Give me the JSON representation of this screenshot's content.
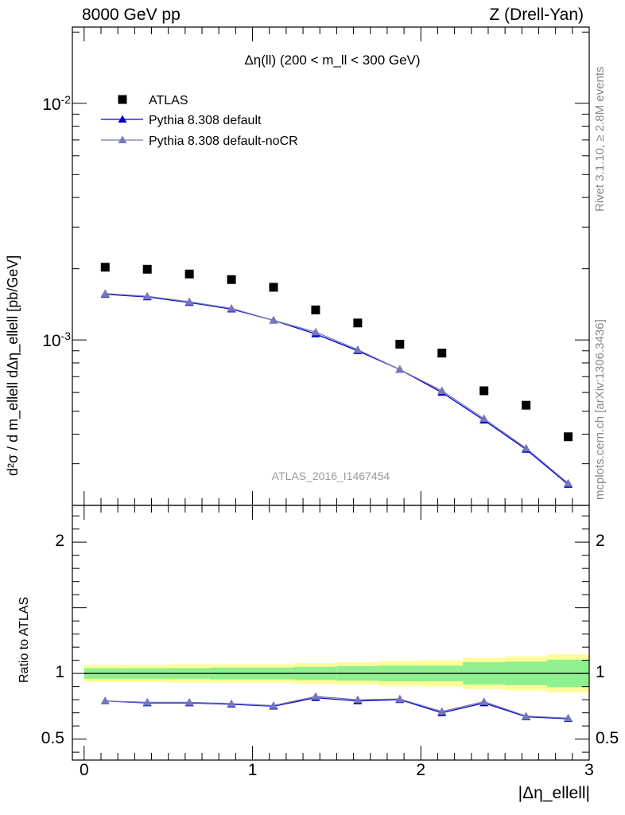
{
  "header": {
    "energy": "8000 GeV pp",
    "process": "Z (Drell-Yan)"
  },
  "side_labels": {
    "rivet": "Rivet 3.1.10, ≥ 2.8M events",
    "source": "mcplots.cern.ch [arXiv:1306.3436]"
  },
  "watermark": "ATLAS_2016_I1467454",
  "chart_data": [
    {
      "type": "scatter",
      "panel": "main",
      "title": "Δη(ll) (200 < m_ll < 300 GeV)",
      "ylabel": "d²σ / d m_ellell dΔη_ellell [pb/GeV]",
      "yscale": "log",
      "ylim": [
        0.0002,
        0.021
      ],
      "xlim": [
        -0.07,
        3.0
      ],
      "y_tick_labels": [
        "10^-3",
        "10^-2"
      ],
      "legend_position": "top-left",
      "x": [
        0.125,
        0.375,
        0.625,
        0.875,
        1.125,
        1.375,
        1.625,
        1.875,
        2.125,
        2.375,
        2.625,
        2.875
      ],
      "series": [
        {
          "name": "ATLAS",
          "marker": "square",
          "color": "#000000",
          "values": [
            0.00203,
            0.00199,
            0.0019,
            0.0018,
            0.00167,
            0.00134,
            0.00118,
            0.00096,
            0.00088,
            0.00061,
            0.00053,
            0.00039
          ]
        },
        {
          "name": "Pythia 8.308 default",
          "marker": "triangle",
          "color": "#0000cc",
          "values": [
            0.00156,
            0.00152,
            0.00144,
            0.00135,
            0.00121,
            0.00106,
            0.0009,
            0.00075,
            0.0006,
            0.000458,
            0.000345,
            0.000245
          ]
        },
        {
          "name": "Pythia 8.308 default-noCR",
          "marker": "triangle",
          "color": "#7777bb",
          "values": [
            0.00157,
            0.00153,
            0.00145,
            0.00136,
            0.00121,
            0.00108,
            0.00091,
            0.00075,
            0.00061,
            0.000465,
            0.000349,
            0.000248
          ]
        }
      ]
    },
    {
      "type": "line",
      "panel": "ratio",
      "ylabel": "Ratio to ATLAS",
      "xlabel": "|Δη_ellell|",
      "ylim": [
        0.34,
        2.28
      ],
      "xlim": [
        -0.07,
        3.0
      ],
      "x_tick_labels": [
        "0",
        "1",
        "2",
        "3"
      ],
      "y_tick_labels": [
        "0.5",
        "1",
        "2"
      ],
      "reference_line": 1,
      "bin_edges": [
        0,
        0.25,
        0.5,
        0.75,
        1.0,
        1.25,
        1.5,
        1.75,
        2.0,
        2.25,
        2.5,
        2.75,
        3.0
      ],
      "band_stat": [
        0.04,
        0.04,
        0.04,
        0.045,
        0.045,
        0.05,
        0.055,
        0.06,
        0.06,
        0.085,
        0.09,
        0.105
      ],
      "band_total": [
        0.065,
        0.065,
        0.07,
        0.07,
        0.07,
        0.08,
        0.085,
        0.095,
        0.1,
        0.12,
        0.13,
        0.145
      ],
      "band_colors": {
        "stat": "#8ef08e",
        "total": "#fdfd99"
      },
      "x": [
        0.125,
        0.375,
        0.625,
        0.875,
        1.125,
        1.375,
        1.625,
        1.875,
        2.125,
        2.375,
        2.625,
        2.875
      ],
      "series": [
        {
          "name": "Pythia 8.308 default",
          "color": "#0000cc",
          "values": [
            0.79,
            0.775,
            0.775,
            0.765,
            0.75,
            0.815,
            0.79,
            0.8,
            0.7,
            0.775,
            0.67,
            0.655
          ]
        },
        {
          "name": "Pythia 8.308 default-noCR",
          "color": "#7777bb",
          "values": [
            0.79,
            0.78,
            0.78,
            0.77,
            0.755,
            0.825,
            0.8,
            0.805,
            0.71,
            0.785,
            0.675,
            0.66
          ]
        }
      ]
    }
  ]
}
